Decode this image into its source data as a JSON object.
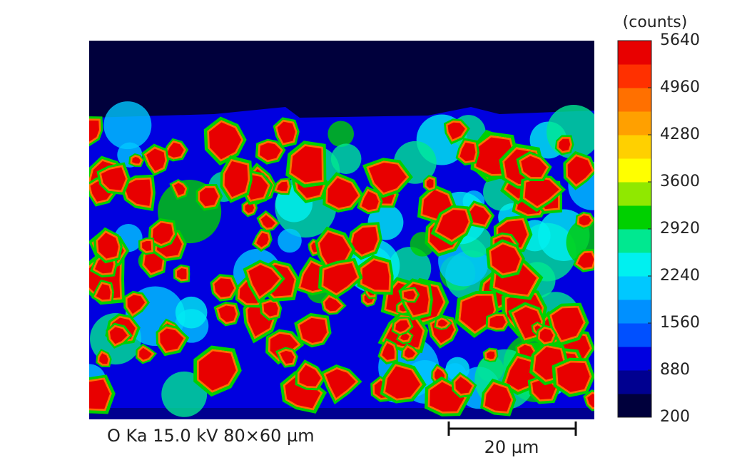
{
  "chart_data": {
    "type": "colormap",
    "caption": "O Ka 15.0 kV 80×60 µm",
    "scale_bar_label": "20 µm",
    "colorbar_label": "(counts)",
    "clim": [
      200,
      5640
    ],
    "cticks": [
      200,
      880,
      1560,
      2240,
      2920,
      3600,
      4280,
      4960,
      5640
    ],
    "colors": [
      "#00003c",
      "#000090",
      "#0000e0",
      "#0050ff",
      "#0090ff",
      "#00c8ff",
      "#00f0f0",
      "#00e890",
      "#00d000",
      "#90e800",
      "#ffff00",
      "#ffd000",
      "#ffa000",
      "#ff7000",
      "#ff3000",
      "#e80000"
    ]
  }
}
